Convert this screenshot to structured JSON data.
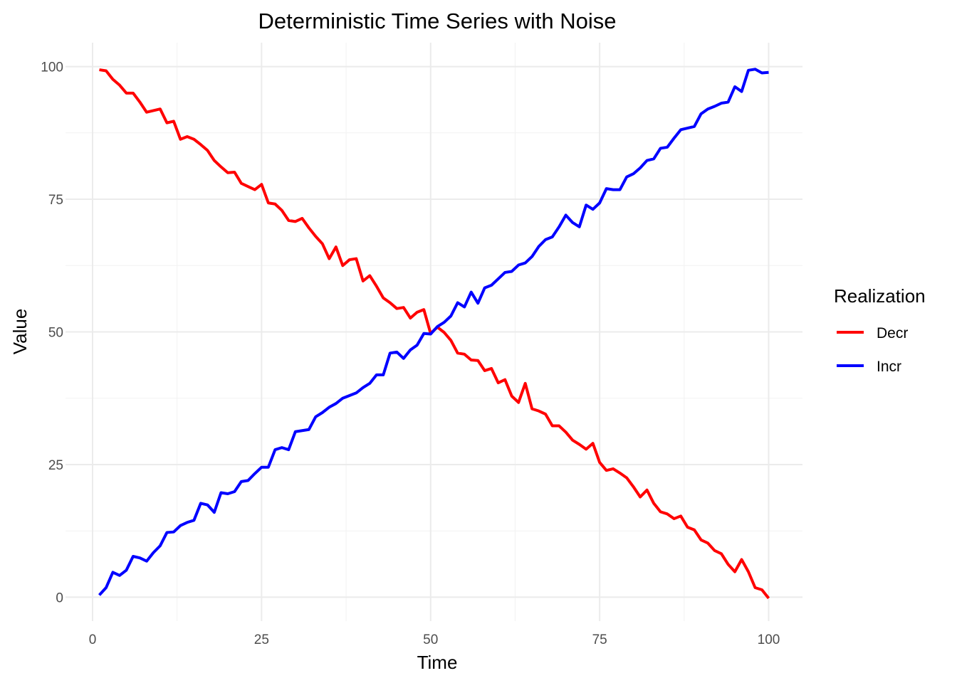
{
  "chart_data": {
    "type": "line",
    "title": "Deterministic Time Series with Noise",
    "xlabel": "Time",
    "ylabel": "Value",
    "xlim": [
      -4,
      105
    ],
    "ylim": [
      -4.5,
      104.5
    ],
    "x_ticks": [
      0,
      25,
      50,
      75,
      100
    ],
    "y_ticks": [
      0,
      25,
      50,
      75,
      100
    ],
    "grid": true,
    "legend": {
      "title": "Realization",
      "position": "right"
    },
    "x": [
      1,
      2,
      3,
      4,
      5,
      6,
      7,
      8,
      9,
      10,
      11,
      12,
      13,
      14,
      15,
      16,
      17,
      18,
      19,
      20,
      21,
      22,
      23,
      24,
      25,
      26,
      27,
      28,
      29,
      30,
      31,
      32,
      33,
      34,
      35,
      36,
      37,
      38,
      39,
      40,
      41,
      42,
      43,
      44,
      45,
      46,
      47,
      48,
      49,
      50,
      51,
      52,
      53,
      54,
      55,
      56,
      57,
      58,
      59,
      60,
      61,
      62,
      63,
      64,
      65,
      66,
      67,
      68,
      69,
      70,
      71,
      72,
      73,
      74,
      75,
      76,
      77,
      78,
      79,
      80,
      81,
      82,
      83,
      84,
      85,
      86,
      87,
      88,
      89,
      90,
      91,
      92,
      93,
      94,
      95,
      96,
      97,
      98,
      99,
      100
    ],
    "series": [
      {
        "name": "Decr",
        "color": "#ff0000",
        "values": [
          99.4,
          99.2,
          97.6,
          96.5,
          95.0,
          95.0,
          93.3,
          91.4,
          91.7,
          92.0,
          89.4,
          89.7,
          86.3,
          86.8,
          86.3,
          85.3,
          84.2,
          82.3,
          81.1,
          80.0,
          80.1,
          78.0,
          77.4,
          76.8,
          77.8,
          74.3,
          74.1,
          72.9,
          71.0,
          70.8,
          71.4,
          69.6,
          68.0,
          66.6,
          63.8,
          66.0,
          62.5,
          63.6,
          63.8,
          59.6,
          60.6,
          58.6,
          56.4,
          55.5,
          54.4,
          54.6,
          52.6,
          53.7,
          54.2,
          49.7,
          50.9,
          49.9,
          48.4,
          46.0,
          45.8,
          44.7,
          44.6,
          42.7,
          43.1,
          40.4,
          41.0,
          37.9,
          36.7,
          40.3,
          35.5,
          35.1,
          34.5,
          32.3,
          32.3,
          31.1,
          29.6,
          28.8,
          27.9,
          29.0,
          25.4,
          23.9,
          24.2,
          23.4,
          22.5,
          20.8,
          18.9,
          20.2,
          17.7,
          16.1,
          15.7,
          14.8,
          15.3,
          13.2,
          12.7,
          10.8,
          10.2,
          8.8,
          8.2,
          6.2,
          4.8,
          7.1,
          4.8,
          1.8,
          1.4,
          -0.2
        ]
      },
      {
        "name": "Incr",
        "color": "#0000ff",
        "values": [
          0.4,
          1.8,
          4.7,
          4.1,
          5.1,
          7.7,
          7.4,
          6.8,
          8.4,
          9.7,
          12.2,
          12.3,
          13.5,
          14.1,
          14.5,
          17.7,
          17.4,
          16.0,
          19.7,
          19.5,
          19.9,
          21.8,
          22.0,
          23.3,
          24.5,
          24.5,
          27.8,
          28.2,
          27.8,
          31.2,
          31.4,
          31.6,
          34.0,
          34.8,
          35.8,
          36.5,
          37.5,
          38.0,
          38.5,
          39.5,
          40.3,
          41.9,
          41.9,
          46.0,
          46.2,
          45.0,
          46.6,
          47.5,
          49.7,
          49.6,
          51.0,
          51.8,
          53.0,
          55.5,
          54.7,
          57.5,
          55.4,
          58.3,
          58.8,
          60.0,
          61.2,
          61.4,
          62.6,
          63.0,
          64.2,
          66.1,
          67.4,
          67.9,
          69.8,
          72.0,
          70.6,
          69.8,
          73.9,
          73.1,
          74.3,
          77.0,
          76.8,
          76.8,
          79.2,
          79.8,
          80.9,
          82.3,
          82.6,
          84.6,
          84.8,
          86.5,
          88.1,
          88.4,
          88.7,
          91.1,
          92.0,
          92.5,
          93.1,
          93.3,
          96.2,
          95.3,
          99.3,
          99.5,
          98.8,
          98.9
        ]
      }
    ]
  }
}
